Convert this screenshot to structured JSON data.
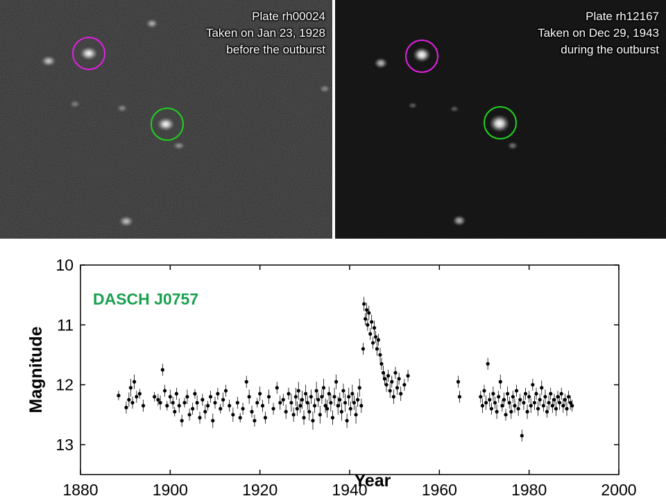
{
  "plates": {
    "left": {
      "plate_id": "Plate rh00024",
      "date_line": "Taken on Jan 23, 1928",
      "state": "before the outburst"
    },
    "right": {
      "plate_id": "Plate rh12167",
      "date_line": "Taken on Dec 29, 1943",
      "state": "during the outburst"
    }
  },
  "colors": {
    "comparison_circle": "#e020e0",
    "target_circle": "#20d020",
    "label_green": "#1aa050",
    "points": "#000000"
  },
  "chart_data": {
    "type": "scatter",
    "title": "",
    "annotation": "DASCH J0757",
    "xlabel": "Year",
    "ylabel": "Magnitude",
    "xlim": [
      1880,
      2000
    ],
    "ylim": [
      10,
      13.5
    ],
    "y_inverted": true,
    "xticks": [
      "1880",
      "1900",
      "1920",
      "1940",
      "1960",
      "1980",
      "2000"
    ],
    "yticks": [
      "10",
      "11",
      "12",
      "13"
    ],
    "grid": false,
    "series": [
      {
        "points": [
          [
            1888.5,
            12.18,
            0.08
          ],
          [
            1890.2,
            12.38,
            0.1
          ],
          [
            1890.8,
            12.25,
            0.12
          ],
          [
            1891.2,
            12.05,
            0.15
          ],
          [
            1891.6,
            12.3,
            0.1
          ],
          [
            1892.0,
            11.95,
            0.12
          ],
          [
            1892.5,
            12.2,
            0.1
          ],
          [
            1893.2,
            12.15,
            0.08
          ],
          [
            1894.0,
            12.35,
            0.1
          ],
          [
            1896.5,
            12.2,
            0.08
          ],
          [
            1897.3,
            12.25,
            0.1
          ],
          [
            1897.8,
            12.3,
            0.12
          ],
          [
            1898.3,
            11.75,
            0.1
          ],
          [
            1898.8,
            12.1,
            0.1
          ],
          [
            1899.3,
            12.35,
            0.08
          ],
          [
            1900.0,
            12.2,
            0.12
          ],
          [
            1900.6,
            12.3,
            0.1
          ],
          [
            1901.0,
            12.45,
            0.08
          ],
          [
            1901.4,
            12.15,
            0.1
          ],
          [
            1902.0,
            12.35,
            0.12
          ],
          [
            1902.6,
            12.6,
            0.1
          ],
          [
            1903.2,
            12.3,
            0.08
          ],
          [
            1903.8,
            12.2,
            0.12
          ],
          [
            1904.3,
            12.5,
            0.1
          ],
          [
            1905.0,
            12.4,
            0.1
          ],
          [
            1905.5,
            12.15,
            0.08
          ],
          [
            1906.0,
            12.3,
            0.12
          ],
          [
            1906.6,
            12.55,
            0.1
          ],
          [
            1907.2,
            12.25,
            0.1
          ],
          [
            1907.8,
            12.45,
            0.12
          ],
          [
            1908.4,
            12.35,
            0.08
          ],
          [
            1909.0,
            12.2,
            0.1
          ],
          [
            1909.5,
            12.6,
            0.12
          ],
          [
            1910.0,
            12.3,
            0.1
          ],
          [
            1910.6,
            12.15,
            0.1
          ],
          [
            1911.2,
            12.4,
            0.08
          ],
          [
            1911.8,
            12.25,
            0.12
          ],
          [
            1912.4,
            12.1,
            0.1
          ],
          [
            1913.2,
            12.35,
            0.1
          ],
          [
            1914.0,
            12.5,
            0.12
          ],
          [
            1915.0,
            12.3,
            0.1
          ],
          [
            1915.6,
            12.55,
            0.08
          ],
          [
            1916.2,
            12.4,
            0.1
          ],
          [
            1917.0,
            11.95,
            0.1
          ],
          [
            1917.6,
            12.2,
            0.12
          ],
          [
            1918.2,
            12.45,
            0.1
          ],
          [
            1918.8,
            12.6,
            0.1
          ],
          [
            1919.4,
            12.3,
            0.08
          ],
          [
            1920.0,
            12.15,
            0.12
          ],
          [
            1920.6,
            12.35,
            0.1
          ],
          [
            1921.2,
            12.55,
            0.1
          ],
          [
            1922.0,
            12.2,
            0.12
          ],
          [
            1923.0,
            12.4,
            0.1
          ],
          [
            1923.8,
            12.05,
            0.1
          ],
          [
            1924.5,
            12.3,
            0.12
          ],
          [
            1925.2,
            12.25,
            0.1
          ],
          [
            1925.8,
            12.45,
            0.12
          ],
          [
            1926.4,
            12.15,
            0.1
          ],
          [
            1927.0,
            12.3,
            0.15
          ],
          [
            1927.5,
            12.5,
            0.12
          ],
          [
            1928.0,
            12.2,
            0.15
          ],
          [
            1928.3,
            12.4,
            0.12
          ],
          [
            1928.6,
            12.1,
            0.15
          ],
          [
            1929.0,
            12.35,
            0.12
          ],
          [
            1929.4,
            12.25,
            0.15
          ],
          [
            1929.8,
            12.55,
            0.12
          ],
          [
            1930.2,
            12.15,
            0.15
          ],
          [
            1930.6,
            12.3,
            0.12
          ],
          [
            1931.0,
            12.45,
            0.15
          ],
          [
            1931.4,
            12.2,
            0.12
          ],
          [
            1931.8,
            12.6,
            0.15
          ],
          [
            1932.2,
            12.35,
            0.12
          ],
          [
            1932.6,
            12.1,
            0.15
          ],
          [
            1933.0,
            12.25,
            0.12
          ],
          [
            1933.4,
            12.5,
            0.15
          ],
          [
            1933.8,
            12.2,
            0.12
          ],
          [
            1934.2,
            12.05,
            0.15
          ],
          [
            1934.6,
            12.35,
            0.12
          ],
          [
            1935.0,
            12.4,
            0.15
          ],
          [
            1935.4,
            12.15,
            0.12
          ],
          [
            1935.8,
            12.3,
            0.15
          ],
          [
            1936.2,
            12.55,
            0.12
          ],
          [
            1936.6,
            12.2,
            0.15
          ],
          [
            1937.0,
            11.95,
            0.12
          ],
          [
            1937.4,
            12.35,
            0.15
          ],
          [
            1937.8,
            12.25,
            0.12
          ],
          [
            1938.2,
            12.45,
            0.15
          ],
          [
            1938.6,
            12.1,
            0.12
          ],
          [
            1939.0,
            12.3,
            0.15
          ],
          [
            1939.4,
            12.6,
            0.12
          ],
          [
            1939.8,
            12.2,
            0.15
          ],
          [
            1940.2,
            12.4,
            0.12
          ],
          [
            1940.6,
            12.15,
            0.15
          ],
          [
            1941.0,
            12.3,
            0.12
          ],
          [
            1941.4,
            12.5,
            0.15
          ],
          [
            1941.8,
            12.25,
            0.12
          ],
          [
            1942.2,
            12.05,
            0.15
          ],
          [
            1942.6,
            12.35,
            0.12
          ],
          [
            1943.0,
            11.4,
            0.1
          ],
          [
            1943.2,
            10.65,
            0.12
          ],
          [
            1943.5,
            10.9,
            0.1
          ],
          [
            1943.8,
            10.75,
            0.12
          ],
          [
            1944.0,
            11.0,
            0.1
          ],
          [
            1944.3,
            10.8,
            0.12
          ],
          [
            1944.6,
            11.15,
            0.1
          ],
          [
            1944.9,
            10.95,
            0.12
          ],
          [
            1945.2,
            11.3,
            0.1
          ],
          [
            1945.5,
            11.05,
            0.12
          ],
          [
            1945.8,
            11.2,
            0.1
          ],
          [
            1946.1,
            11.4,
            0.12
          ],
          [
            1946.4,
            11.25,
            0.1
          ],
          [
            1946.8,
            11.5,
            0.12
          ],
          [
            1947.1,
            11.65,
            0.1
          ],
          [
            1947.5,
            11.8,
            0.12
          ],
          [
            1947.8,
            11.9,
            0.1
          ],
          [
            1948.2,
            12.0,
            0.12
          ],
          [
            1948.6,
            11.85,
            0.1
          ],
          [
            1949.0,
            12.1,
            0.12
          ],
          [
            1949.4,
            11.95,
            0.1
          ],
          [
            1949.8,
            12.2,
            0.12
          ],
          [
            1950.2,
            11.8,
            0.1
          ],
          [
            1950.6,
            12.05,
            0.12
          ],
          [
            1951.0,
            11.9,
            0.1
          ],
          [
            1951.4,
            12.15,
            0.12
          ],
          [
            1952.2,
            12.0,
            0.1
          ],
          [
            1953.0,
            11.85,
            0.1
          ],
          [
            1964.2,
            11.95,
            0.1
          ],
          [
            1964.5,
            12.2,
            0.1
          ],
          [
            1969.2,
            12.2,
            0.1
          ],
          [
            1969.6,
            12.35,
            0.12
          ],
          [
            1970.0,
            12.1,
            0.1
          ],
          [
            1970.4,
            12.3,
            0.12
          ],
          [
            1970.8,
            11.65,
            0.1
          ],
          [
            1971.2,
            12.25,
            0.12
          ],
          [
            1971.6,
            12.4,
            0.1
          ],
          [
            1972.0,
            12.15,
            0.12
          ],
          [
            1972.4,
            12.3,
            0.1
          ],
          [
            1972.8,
            12.45,
            0.12
          ],
          [
            1973.2,
            12.2,
            0.1
          ],
          [
            1973.6,
            11.95,
            0.12
          ],
          [
            1974.0,
            12.35,
            0.1
          ],
          [
            1974.4,
            12.25,
            0.12
          ],
          [
            1974.8,
            12.5,
            0.1
          ],
          [
            1975.2,
            12.15,
            0.12
          ],
          [
            1975.6,
            12.3,
            0.1
          ],
          [
            1976.0,
            12.45,
            0.12
          ],
          [
            1976.4,
            12.2,
            0.1
          ],
          [
            1976.8,
            12.35,
            0.12
          ],
          [
            1977.2,
            12.1,
            0.1
          ],
          [
            1977.6,
            12.4,
            0.12
          ],
          [
            1978.0,
            12.25,
            0.1
          ],
          [
            1978.4,
            12.85,
            0.1
          ],
          [
            1978.8,
            12.3,
            0.12
          ],
          [
            1979.2,
            12.15,
            0.1
          ],
          [
            1979.6,
            12.45,
            0.12
          ],
          [
            1980.0,
            12.2,
            0.1
          ],
          [
            1980.4,
            12.35,
            0.12
          ],
          [
            1980.8,
            12.0,
            0.1
          ],
          [
            1981.2,
            12.3,
            0.12
          ],
          [
            1981.6,
            12.15,
            0.1
          ],
          [
            1982.0,
            12.4,
            0.12
          ],
          [
            1982.4,
            12.25,
            0.1
          ],
          [
            1982.8,
            12.05,
            0.12
          ],
          [
            1983.2,
            12.35,
            0.1
          ],
          [
            1983.6,
            12.2,
            0.12
          ],
          [
            1984.0,
            12.45,
            0.1
          ],
          [
            1984.4,
            12.3,
            0.12
          ],
          [
            1984.8,
            12.15,
            0.1
          ],
          [
            1985.2,
            12.35,
            0.12
          ],
          [
            1985.6,
            12.25,
            0.1
          ],
          [
            1986.0,
            12.4,
            0.12
          ],
          [
            1986.4,
            12.2,
            0.1
          ],
          [
            1986.8,
            12.3,
            0.12
          ],
          [
            1987.2,
            12.15,
            0.1
          ],
          [
            1987.6,
            12.35,
            0.12
          ],
          [
            1988.0,
            12.25,
            0.1
          ],
          [
            1988.4,
            12.4,
            0.12
          ],
          [
            1988.8,
            12.2,
            0.1
          ],
          [
            1989.2,
            12.3,
            0.12
          ],
          [
            1989.6,
            12.35,
            0.1
          ]
        ]
      }
    ]
  }
}
